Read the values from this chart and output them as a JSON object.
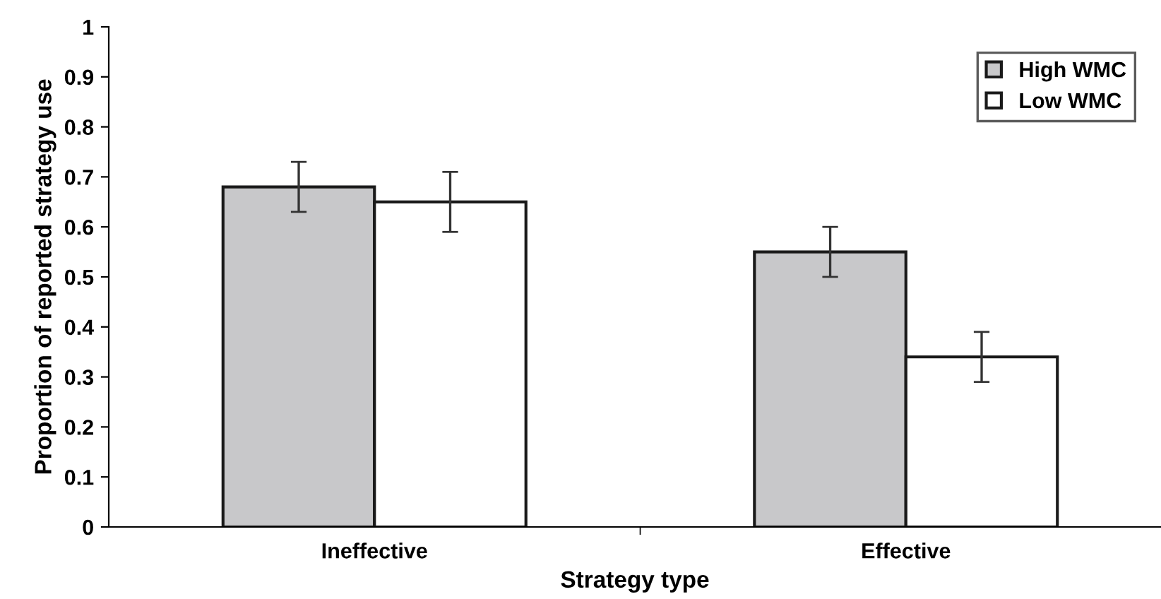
{
  "chart_data": {
    "type": "bar",
    "xlabel": "Strategy type",
    "ylabel": "Proportion of reported strategy use",
    "categories": [
      "Ineffective",
      "Effective"
    ],
    "series": [
      {
        "name": "High WMC",
        "color": "#c8c8ca",
        "values": [
          0.68,
          0.55
        ],
        "errors": [
          0.05,
          0.05
        ]
      },
      {
        "name": "Low WMC",
        "color": "#ffffff",
        "values": [
          0.65,
          0.34
        ],
        "errors": [
          0.06,
          0.05
        ]
      }
    ],
    "ylim": [
      0,
      1
    ],
    "yticks": [
      0,
      0.1,
      0.2,
      0.3,
      0.4,
      0.5,
      0.6,
      0.7,
      0.8,
      0.9,
      1
    ],
    "grid": false,
    "legend": "top right"
  }
}
